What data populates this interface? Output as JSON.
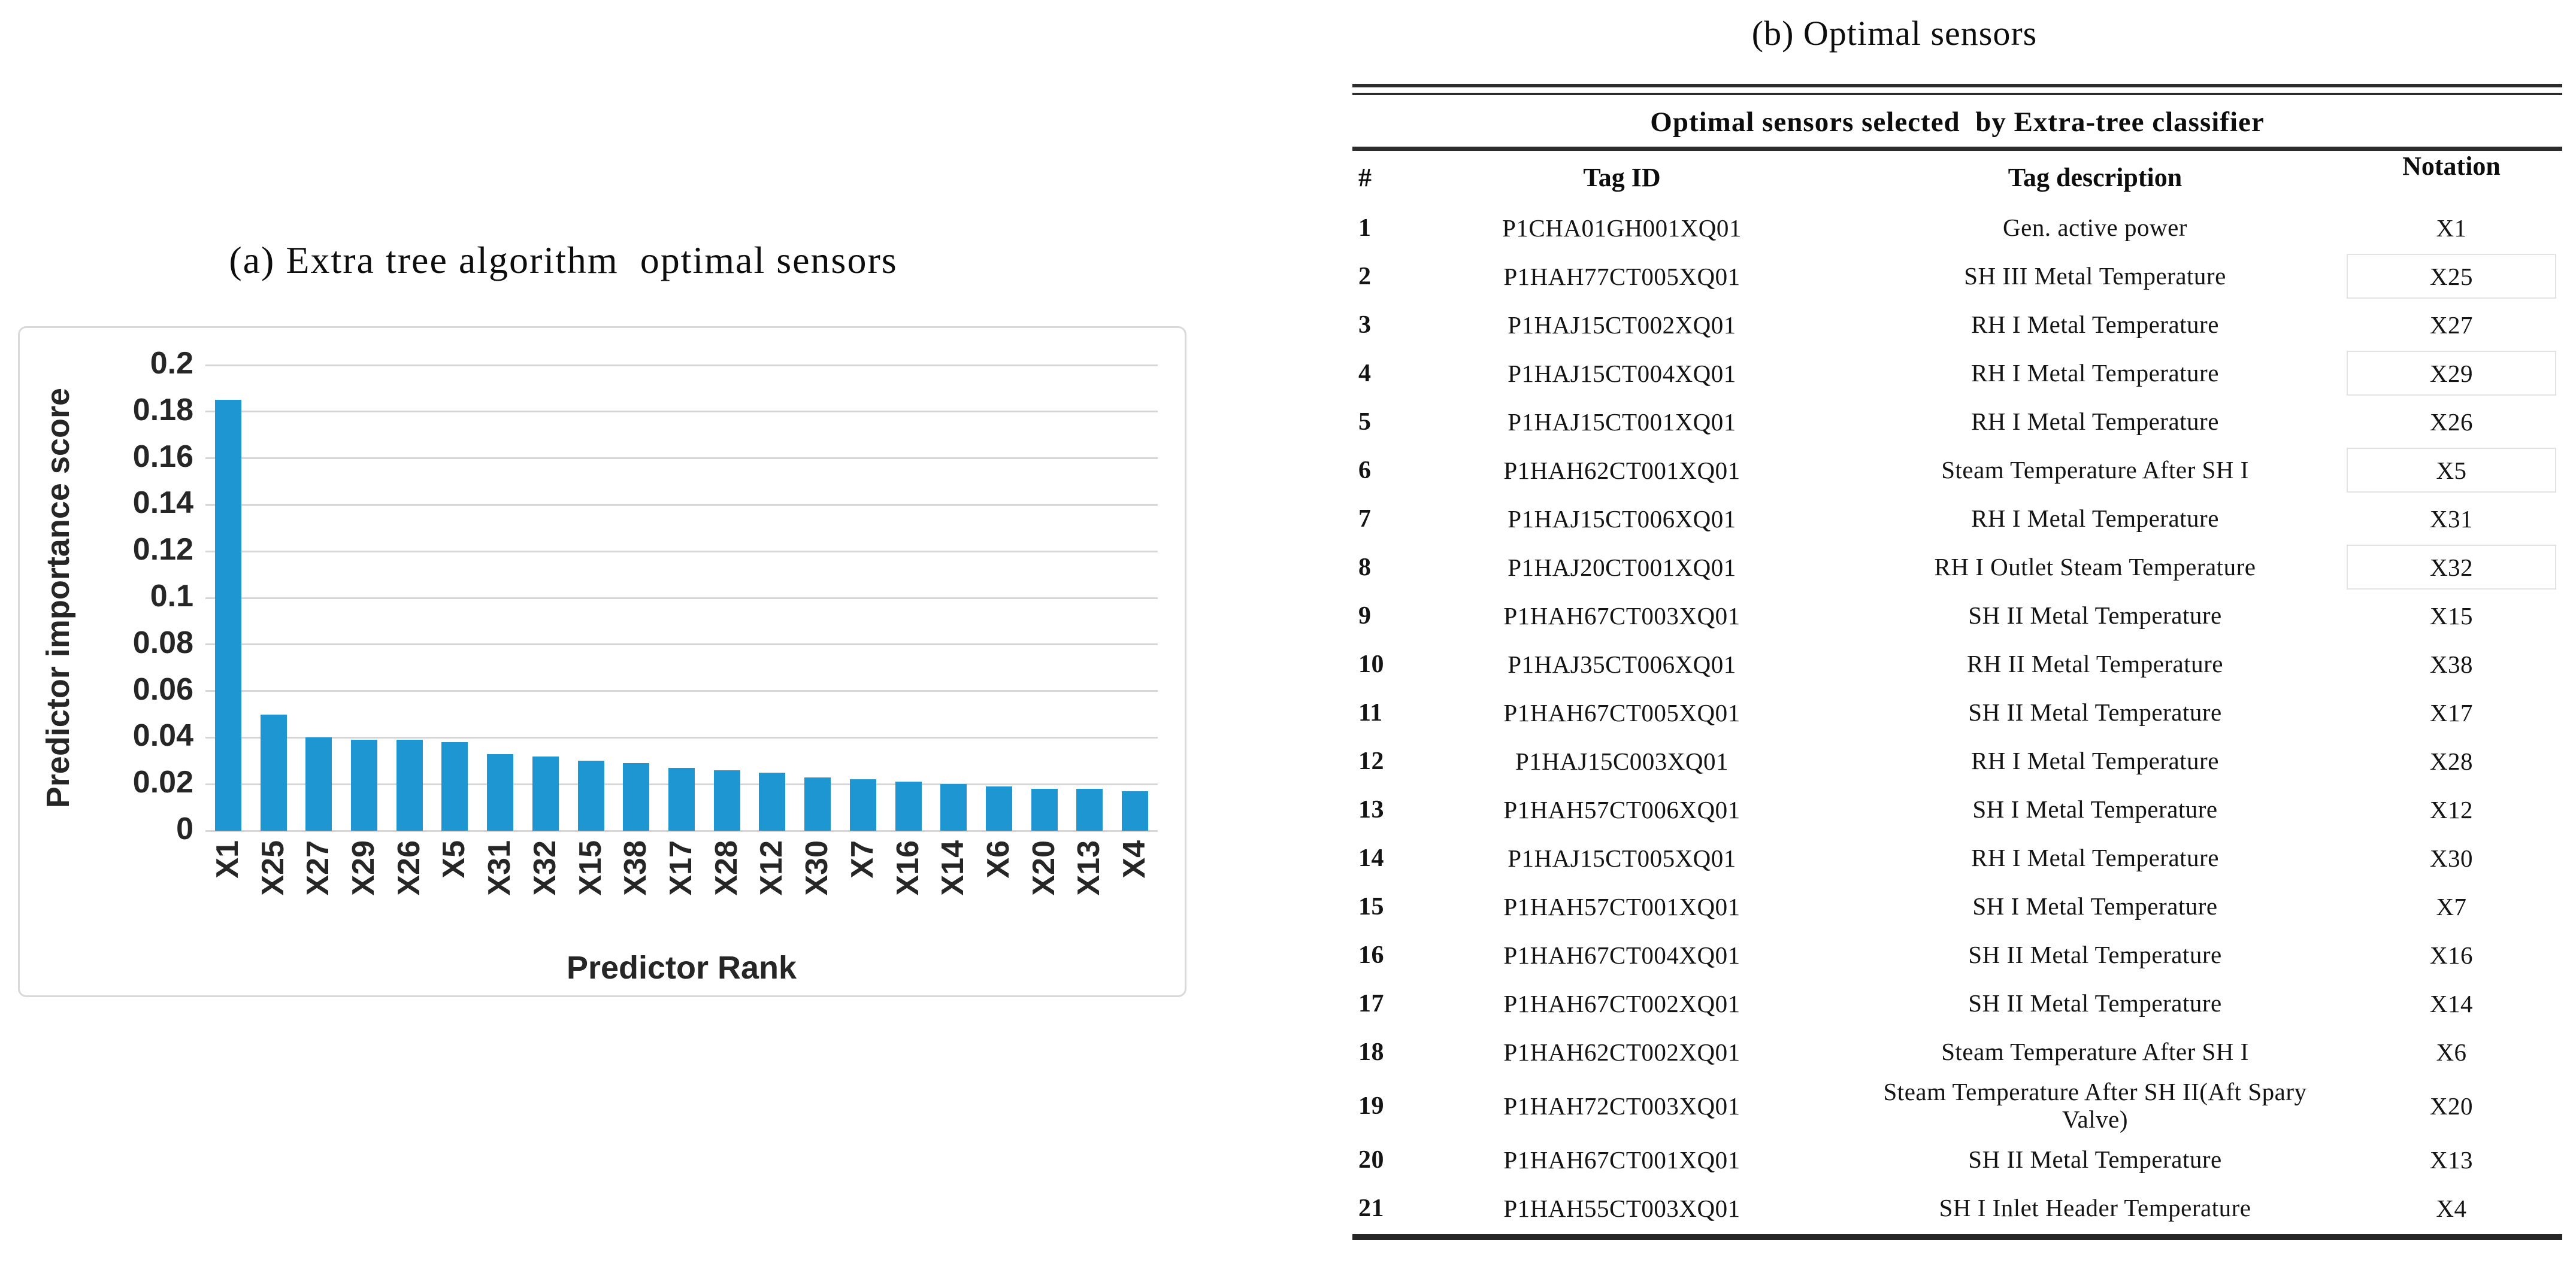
{
  "chart_data": {
    "type": "bar",
    "title": "(a) Extra tree algorithm  optimal sensors",
    "xlabel": "Predictor Rank",
    "ylabel": "Predictor importance score",
    "categories": [
      "X1",
      "X25",
      "X27",
      "X29",
      "X26",
      "X5",
      "X31",
      "X32",
      "X15",
      "X38",
      "X17",
      "X28",
      "X12",
      "X30",
      "X7",
      "X16",
      "X14",
      "X6",
      "X20",
      "X13",
      "X4"
    ],
    "values": [
      0.185,
      0.05,
      0.04,
      0.039,
      0.039,
      0.038,
      0.033,
      0.032,
      0.03,
      0.029,
      0.027,
      0.026,
      0.025,
      0.023,
      0.022,
      0.021,
      0.02,
      0.019,
      0.018,
      0.018,
      0.017
    ],
    "ylim": [
      0,
      0.2
    ],
    "yticks": [
      "0",
      "0.02",
      "0.04",
      "0.06",
      "0.08",
      "0.1",
      "0.12",
      "0.14",
      "0.16",
      "0.18",
      "0.2"
    ],
    "grid": true,
    "legend": "none",
    "bar_color": "#1e96d2",
    "gridline_color": "#d6d6d6",
    "axis_text_color": "#262626"
  },
  "figure_b": {
    "title": "(b) Optimal sensors",
    "table": {
      "header": "Optimal sensors selected  by Extra-tree classifier",
      "columns": [
        "#",
        "Tag ID",
        "Tag description",
        "Notation"
      ],
      "rows": [
        {
          "num": "1",
          "tag_id": "P1CHA01GH001XQ01",
          "description": "Gen. active power",
          "notation": "X1",
          "boxed": false
        },
        {
          "num": "2",
          "tag_id": "P1HAH77CT005XQ01",
          "description": "SH III Metal Temperature",
          "notation": "X25",
          "boxed": true
        },
        {
          "num": "3",
          "tag_id": "P1HAJ15CT002XQ01",
          "description": "RH I Metal Temperature",
          "notation": "X27",
          "boxed": false
        },
        {
          "num": "4",
          "tag_id": "P1HAJ15CT004XQ01",
          "description": "RH I Metal Temperature",
          "notation": "X29",
          "boxed": true
        },
        {
          "num": "5",
          "tag_id": "P1HAJ15CT001XQ01",
          "description": "RH I Metal Temperature",
          "notation": "X26",
          "boxed": false
        },
        {
          "num": "6",
          "tag_id": "P1HAH62CT001XQ01",
          "description": "Steam Temperature After SH I",
          "notation": "X5",
          "boxed": true
        },
        {
          "num": "7",
          "tag_id": "P1HAJ15CT006XQ01",
          "description": "RH I Metal Temperature",
          "notation": "X31",
          "boxed": false
        },
        {
          "num": "8",
          "tag_id": "P1HAJ20CT001XQ01",
          "description": "RH I Outlet Steam Temperature",
          "notation": "X32",
          "boxed": true
        },
        {
          "num": "9",
          "tag_id": "P1HAH67CT003XQ01",
          "description": "SH II Metal Temperature",
          "notation": "X15",
          "boxed": false
        },
        {
          "num": "10",
          "tag_id": "P1HAJ35CT006XQ01",
          "description": "RH II Metal Temperature",
          "notation": "X38",
          "boxed": false
        },
        {
          "num": "11",
          "tag_id": "P1HAH67CT005XQ01",
          "description": "SH II Metal Temperature",
          "notation": "X17",
          "boxed": false
        },
        {
          "num": "12",
          "tag_id": "P1HAJ15C003XQ01",
          "description": "RH I Metal Temperature",
          "notation": "X28",
          "boxed": false
        },
        {
          "num": "13",
          "tag_id": "P1HAH57CT006XQ01",
          "description": "SH I Metal Temperature",
          "notation": "X12",
          "boxed": false
        },
        {
          "num": "14",
          "tag_id": "P1HAJ15CT005XQ01",
          "description": "RH I Metal Temperature",
          "notation": "X30",
          "boxed": false
        },
        {
          "num": "15",
          "tag_id": "P1HAH57CT001XQ01",
          "description": "SH I Metal Temperature",
          "notation": "X7",
          "boxed": false
        },
        {
          "num": "16",
          "tag_id": "P1HAH67CT004XQ01",
          "description": "SH II Metal Temperature",
          "notation": "X16",
          "boxed": false
        },
        {
          "num": "17",
          "tag_id": "P1HAH67CT002XQ01",
          "description": "SH II Metal Temperature",
          "notation": "X14",
          "boxed": false
        },
        {
          "num": "18",
          "tag_id": "P1HAH62CT002XQ01",
          "description": "Steam Temperature After SH I",
          "notation": "X6",
          "boxed": false
        },
        {
          "num": "19",
          "tag_id": "P1HAH72CT003XQ01",
          "description": "Steam Temperature After SH II(Aft Spary Valve)",
          "notation": "X20",
          "boxed": false
        },
        {
          "num": "20",
          "tag_id": "P1HAH67CT001XQ01",
          "description": "SH II Metal Temperature",
          "notation": "X13",
          "boxed": false
        },
        {
          "num": "21",
          "tag_id": "P1HAH55CT003XQ01",
          "description": "SH I Inlet Header Temperature",
          "notation": "X4",
          "boxed": false
        }
      ]
    }
  }
}
